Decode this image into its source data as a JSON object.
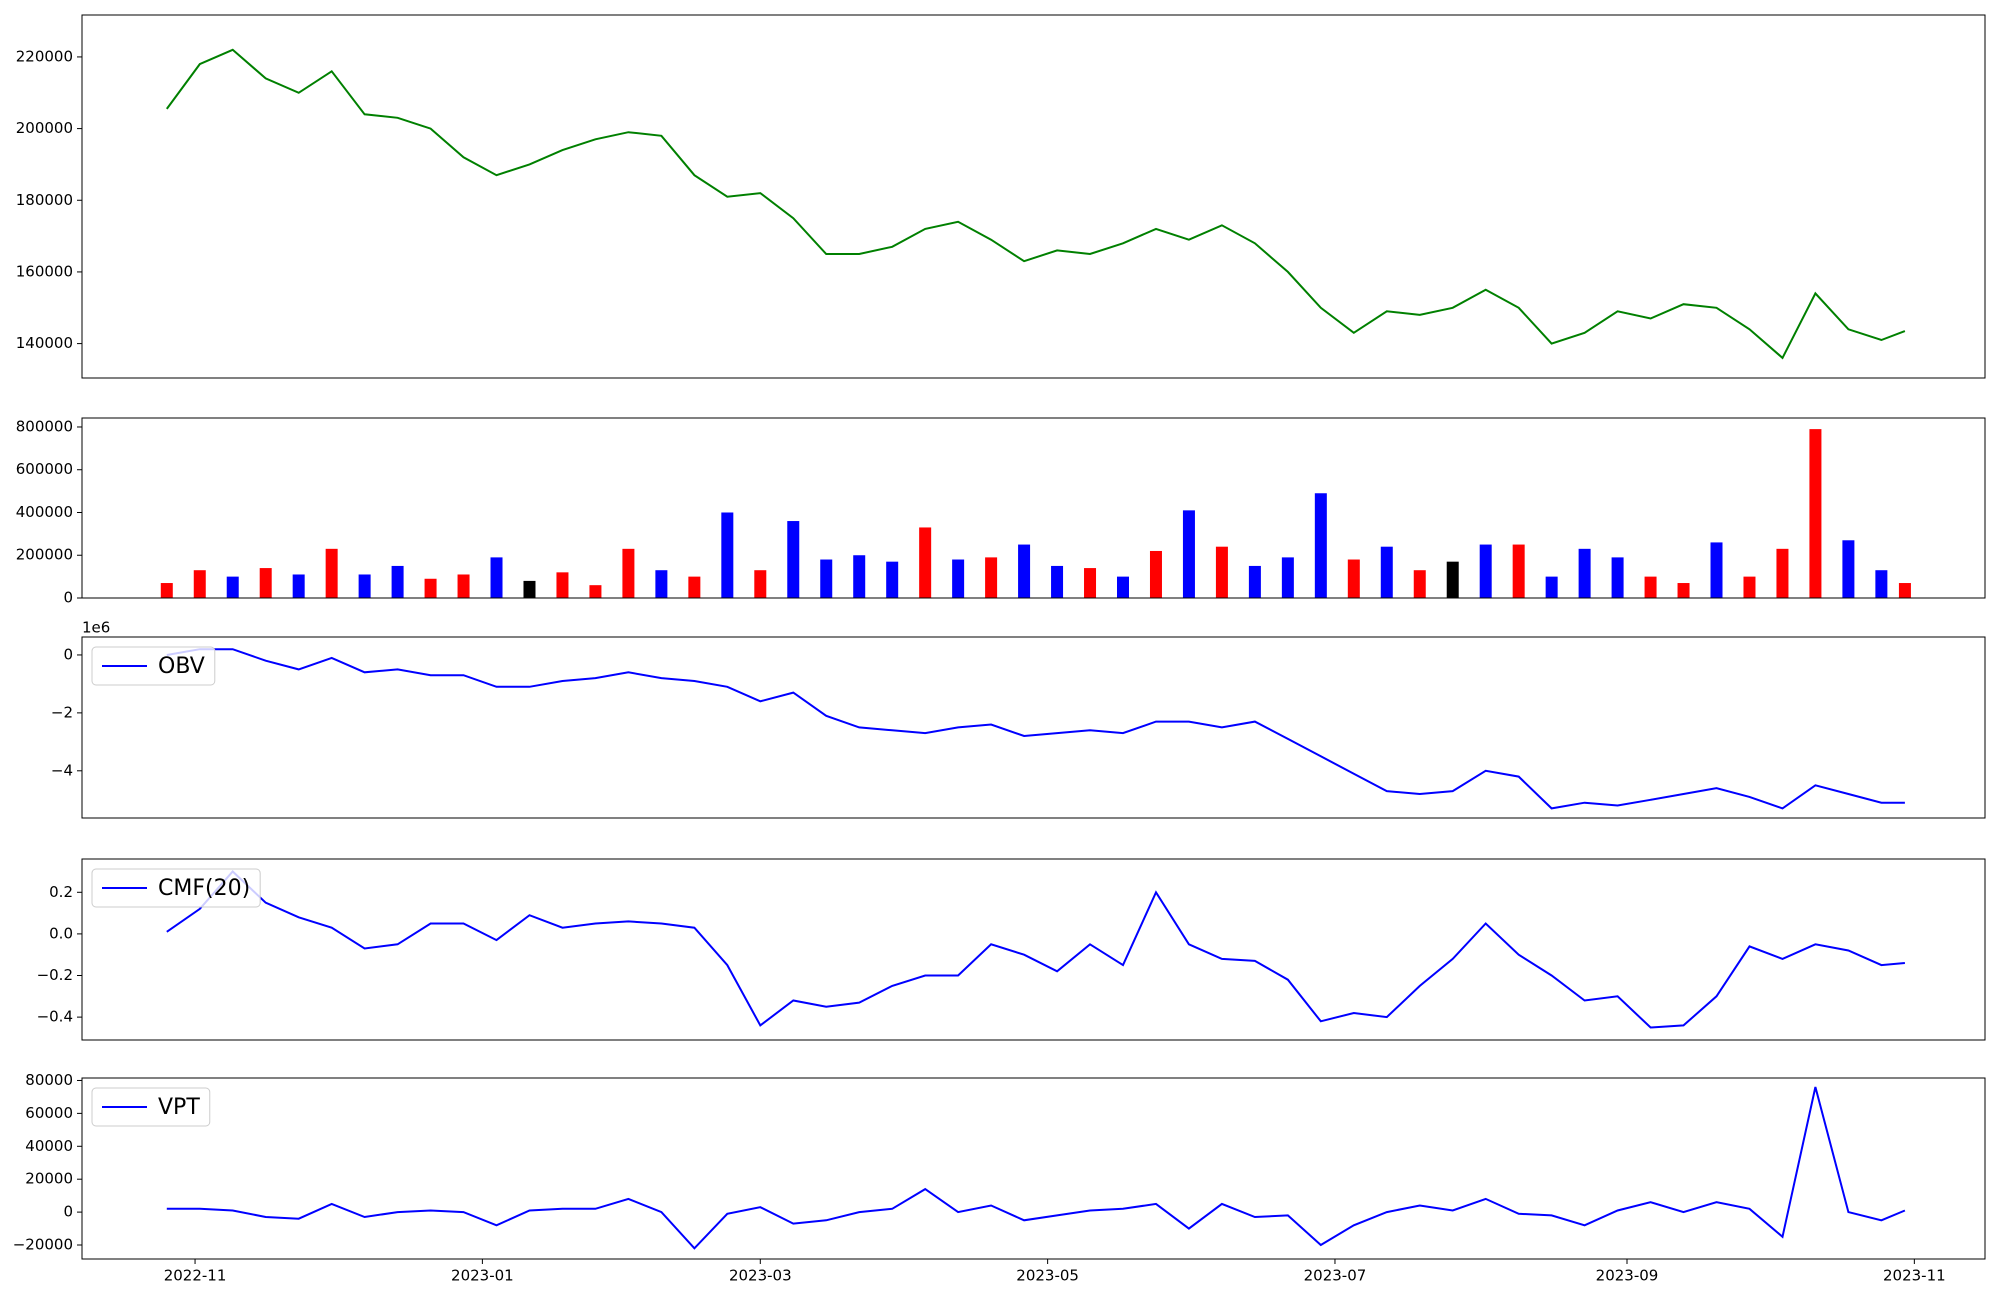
{
  "chart_data": [
    {
      "type": "line",
      "x": [
        "2022-10-26",
        "2022-11-02",
        "2022-11-09",
        "2022-11-16",
        "2022-11-23",
        "2022-11-30",
        "2022-12-07",
        "2022-12-14",
        "2022-12-21",
        "2022-12-28",
        "2023-01-04",
        "2023-01-11",
        "2023-01-18",
        "2023-01-25",
        "2023-02-01",
        "2023-02-08",
        "2023-02-15",
        "2023-02-22",
        "2023-03-01",
        "2023-03-08",
        "2023-03-15",
        "2023-03-22",
        "2023-03-29",
        "2023-04-05",
        "2023-04-12",
        "2023-04-19",
        "2023-04-26",
        "2023-05-03",
        "2023-05-10",
        "2023-05-17",
        "2023-05-24",
        "2023-05-31",
        "2023-06-07",
        "2023-06-14",
        "2023-06-21",
        "2023-06-28",
        "2023-07-05",
        "2023-07-12",
        "2023-07-19",
        "2023-07-26",
        "2023-08-02",
        "2023-08-09",
        "2023-08-16",
        "2023-08-23",
        "2023-08-30",
        "2023-09-06",
        "2023-09-13",
        "2023-09-20",
        "2023-09-27",
        "2023-10-04",
        "2023-10-11",
        "2023-10-18",
        "2023-10-25",
        "2023-10-30"
      ],
      "xlim": [
        "2022-10-08",
        "2023-11-16"
      ],
      "series": [
        {
          "color": "green",
          "values": [
            205500,
            218000,
            222000,
            214000,
            210000,
            216000,
            204000,
            203000,
            200000,
            192000,
            187000,
            190000,
            194000,
            197000,
            199000,
            198000,
            187000,
            181000,
            182000,
            175000,
            165000,
            165000,
            167000,
            172000,
            174000,
            169000,
            163000,
            166000,
            165000,
            168000,
            172000,
            169000,
            173000,
            168000,
            160000,
            150000,
            143000,
            149000,
            148000,
            150000,
            155000,
            150000,
            140000,
            143000,
            149000,
            147000,
            151000,
            150000,
            144000,
            136000,
            154000,
            144000,
            141000,
            143500
          ]
        }
      ],
      "ylim": [
        130400,
        231700
      ],
      "yticks": [
        140000,
        160000,
        180000,
        200000,
        220000
      ]
    },
    {
      "type": "bar",
      "values": [
        70000,
        130000,
        100000,
        140000,
        110000,
        230000,
        110000,
        150000,
        90000,
        110000,
        190000,
        80000,
        120000,
        60000,
        230000,
        130000,
        100000,
        400000,
        130000,
        360000,
        180000,
        200000,
        170000,
        330000,
        180000,
        190000,
        250000,
        150000,
        140000,
        100000,
        220000,
        410000,
        240000,
        150000,
        190000,
        490000,
        180000,
        240000,
        130000,
        170000,
        250000,
        250000,
        100000,
        230000,
        190000,
        100000,
        70000,
        260000,
        100000,
        230000,
        790000,
        270000,
        130000,
        70000
      ],
      "colors": [
        "red",
        "red",
        "blue",
        "red",
        "blue",
        "red",
        "blue",
        "blue",
        "red",
        "red",
        "blue",
        "black",
        "red",
        "red",
        "red",
        "blue",
        "red",
        "blue",
        "red",
        "blue",
        "blue",
        "blue",
        "blue",
        "red",
        "blue",
        "red",
        "blue",
        "blue",
        "red",
        "blue",
        "red",
        "blue",
        "red",
        "blue",
        "blue",
        "blue",
        "red",
        "blue",
        "red",
        "black",
        "blue",
        "red",
        "blue",
        "blue",
        "blue",
        "red",
        "red",
        "blue",
        "red",
        "red",
        "red",
        "blue",
        "blue",
        "red"
      ],
      "ylim": [
        0,
        842000
      ],
      "yticks": [
        0,
        200000,
        400000,
        600000,
        800000
      ]
    },
    {
      "type": "line",
      "offset_text": "1e6",
      "legend": "upper left",
      "series": [
        {
          "name": "OBV",
          "color": "blue",
          "values": [
            0,
            0.2,
            0.2,
            -0.2,
            -0.5,
            -0.1,
            -0.6,
            -0.5,
            -0.7,
            -0.7,
            -1.1,
            -1.1,
            -0.9,
            -0.8,
            -0.6,
            -0.8,
            -0.9,
            -1.1,
            -1.6,
            -1.3,
            -2.1,
            -2.5,
            -2.6,
            -2.7,
            -2.5,
            -2.4,
            -2.8,
            -2.7,
            -2.6,
            -2.7,
            -2.3,
            -2.3,
            -2.5,
            -2.3,
            -2.9,
            -3.5,
            -4.1,
            -4.7,
            -4.8,
            -4.7,
            -4.0,
            -4.2,
            -5.3,
            -5.1,
            -5.2,
            -5.0,
            -4.8,
            -4.6,
            -4.9,
            -5.3,
            -4.5,
            -4.8,
            -5.1,
            -5.1
          ]
        }
      ],
      "ylim": [
        -5.63,
        0.62
      ],
      "yticks": [
        {
          "value": -4,
          "label": "−4"
        },
        {
          "value": -2,
          "label": "−2"
        },
        0
      ]
    },
    {
      "type": "line",
      "legend": "upper left",
      "series": [
        {
          "name": "CMF(20)",
          "color": "blue",
          "values": [
            0.01,
            0.12,
            0.3,
            0.15,
            0.08,
            0.03,
            -0.07,
            -0.05,
            0.05,
            0.05,
            -0.03,
            0.09,
            0.03,
            0.05,
            0.06,
            0.05,
            0.03,
            -0.15,
            -0.44,
            -0.32,
            -0.35,
            -0.33,
            -0.25,
            -0.2,
            -0.2,
            -0.05,
            -0.1,
            -0.18,
            -0.05,
            -0.15,
            0.2,
            -0.05,
            -0.12,
            -0.13,
            -0.22,
            -0.42,
            -0.38,
            -0.4,
            -0.25,
            -0.12,
            0.05,
            -0.1,
            -0.2,
            -0.32,
            -0.3,
            -0.45,
            -0.44,
            -0.3,
            -0.06,
            -0.12,
            -0.05,
            -0.08,
            -0.15,
            -0.14
          ]
        }
      ],
      "ylim": [
        -0.51,
        0.36
      ],
      "yticks": [
        {
          "value": -0.4,
          "label": "−0.4"
        },
        {
          "value": -0.2,
          "label": "−0.2"
        },
        {
          "value": 0,
          "label": "0.0"
        },
        0.2
      ]
    },
    {
      "type": "line",
      "legend": "upper left",
      "series": [
        {
          "name": "VPT",
          "color": "blue",
          "values": [
            2000,
            2000,
            1000,
            -3000,
            -4000,
            5000,
            -3000,
            0,
            1000,
            0,
            -8000,
            1000,
            2000,
            2000,
            8000,
            0,
            -22000,
            -1000,
            3000,
            -7000,
            -5000,
            0,
            2000,
            14000,
            0,
            4000,
            -5000,
            -2000,
            1000,
            2000,
            5000,
            -10000,
            5000,
            -3000,
            -2000,
            -20000,
            -8000,
            0,
            4000,
            1000,
            8000,
            -1000,
            -2000,
            -8000,
            1000,
            6000,
            0,
            6000,
            2000,
            -15000,
            76000,
            0,
            -5000,
            1000
          ]
        }
      ],
      "ylim": [
        -28500,
        81500
      ],
      "yticks": [
        {
          "value": -20000,
          "label": "−20000"
        },
        0,
        20000,
        40000,
        60000,
        80000
      ],
      "xticks": [
        {
          "value": "2022-11-01",
          "label": "2022-11"
        },
        {
          "value": "2023-01-01",
          "label": "2023-01"
        },
        {
          "value": "2023-03-01",
          "label": "2023-03"
        },
        {
          "value": "2023-05-01",
          "label": "2023-05"
        },
        {
          "value": "2023-07-01",
          "label": "2023-07"
        },
        {
          "value": "2023-09-01",
          "label": "2023-09"
        },
        {
          "value": "2023-11-01",
          "label": "2023-11"
        }
      ]
    }
  ]
}
